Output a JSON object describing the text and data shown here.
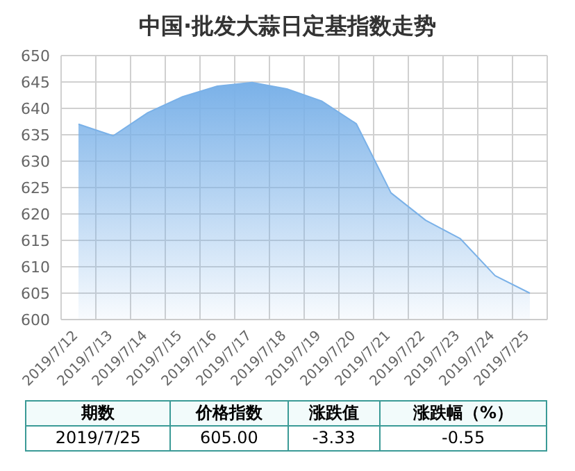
{
  "chart_data": {
    "type": "area",
    "title": "中国·批发大蒜日定基指数走势",
    "categories": [
      "2019/7/12",
      "2019/7/13",
      "2019/7/14",
      "2019/7/15",
      "2019/7/16",
      "2019/7/17",
      "2019/7/18",
      "2019/7/19",
      "2019/7/20",
      "2019/7/21",
      "2019/7/22",
      "2019/7/23",
      "2019/7/24",
      "2019/7/25"
    ],
    "series": [
      {
        "color": "#7ab1e8",
        "values": [
          637,
          634.8,
          639.2,
          642.2,
          644.2,
          644.9,
          643.7,
          641.4,
          637.1,
          624,
          618.8,
          615.3,
          608.3,
          605
        ]
      }
    ],
    "ylim": [
      600,
      650
    ],
    "yticks": [
      600,
      605,
      610,
      615,
      620,
      625,
      630,
      635,
      640,
      645,
      650
    ],
    "grid": true,
    "annotations": [
      "期数",
      "价格指数",
      "涨跌值",
      "涨跌幅（%）",
      "2019/7/25",
      "605.00",
      "-3.33",
      "-0.55"
    ]
  }
}
